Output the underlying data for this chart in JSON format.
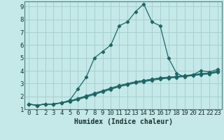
{
  "xlabel": "Humidex (Indice chaleur)",
  "background_color": "#c5e8e8",
  "grid_color": "#a8d0d0",
  "line_color": "#1e6666",
  "xlim": [
    -0.5,
    23.5
  ],
  "ylim": [
    1,
    9.4
  ],
  "xticks": [
    0,
    1,
    2,
    3,
    4,
    5,
    6,
    7,
    8,
    9,
    10,
    11,
    12,
    13,
    14,
    15,
    16,
    17,
    18,
    19,
    20,
    21,
    22,
    23
  ],
  "yticks": [
    1,
    2,
    3,
    4,
    5,
    6,
    7,
    8,
    9
  ],
  "main_x": [
    0,
    1,
    2,
    3,
    4,
    5,
    6,
    7,
    8,
    9,
    10,
    11,
    12,
    13,
    14,
    15,
    16,
    17,
    18,
    19,
    20,
    21,
    22,
    23
  ],
  "main_y": [
    1.4,
    1.3,
    1.4,
    1.4,
    1.5,
    1.7,
    2.6,
    3.5,
    5.0,
    5.5,
    6.0,
    7.5,
    7.8,
    8.6,
    9.2,
    7.8,
    7.5,
    5.0,
    3.8,
    3.5,
    3.7,
    4.0,
    3.9,
    4.1
  ],
  "line2_x": [
    0,
    1,
    2,
    3,
    4,
    5,
    6,
    7,
    8,
    9,
    10,
    11,
    12,
    13,
    14,
    15,
    16,
    17,
    18,
    19,
    20,
    21,
    22,
    23
  ],
  "line2_y": [
    1.4,
    1.3,
    1.4,
    1.4,
    1.5,
    1.6,
    1.75,
    1.95,
    2.15,
    2.35,
    2.55,
    2.75,
    2.9,
    3.05,
    3.15,
    3.25,
    3.35,
    3.42,
    3.48,
    3.55,
    3.62,
    3.7,
    3.75,
    3.88
  ],
  "line3_x": [
    0,
    1,
    2,
    3,
    4,
    5,
    6,
    7,
    8,
    9,
    10,
    11,
    12,
    13,
    14,
    15,
    16,
    17,
    18,
    19,
    20,
    21,
    22,
    23
  ],
  "line3_y": [
    1.4,
    1.3,
    1.4,
    1.4,
    1.5,
    1.62,
    1.82,
    2.02,
    2.22,
    2.42,
    2.62,
    2.82,
    2.97,
    3.12,
    3.22,
    3.32,
    3.42,
    3.47,
    3.53,
    3.6,
    3.67,
    3.75,
    3.8,
    3.93
  ],
  "line4_x": [
    0,
    1,
    2,
    3,
    4,
    5,
    6,
    7,
    8,
    9,
    10,
    11,
    12,
    13,
    14,
    15,
    16,
    17,
    18,
    19,
    20,
    21,
    22,
    23
  ],
  "line4_y": [
    1.4,
    1.3,
    1.4,
    1.4,
    1.5,
    1.64,
    1.84,
    2.04,
    2.24,
    2.44,
    2.64,
    2.84,
    2.99,
    3.14,
    3.24,
    3.34,
    3.44,
    3.49,
    3.55,
    3.62,
    3.69,
    3.77,
    3.82,
    3.96
  ],
  "xlabel_fontsize": 7,
  "tick_fontsize": 6.5
}
